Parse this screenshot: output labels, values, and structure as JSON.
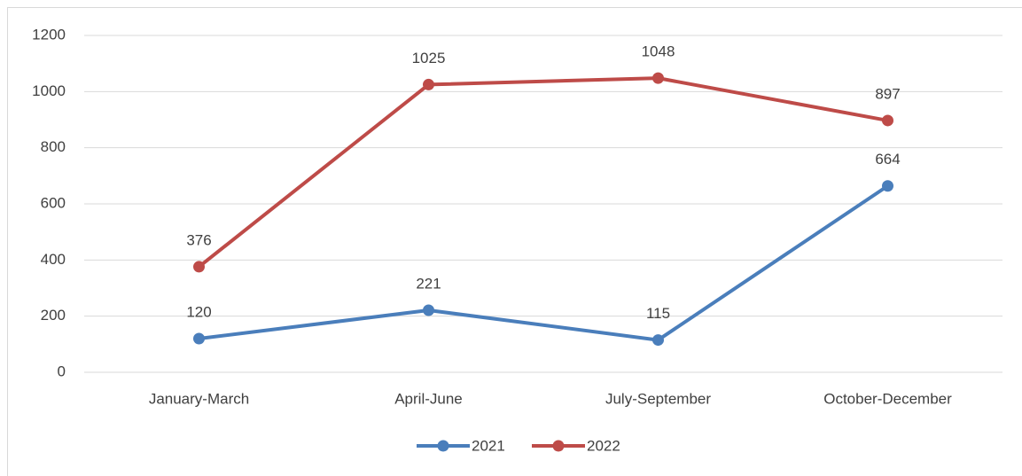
{
  "chart_data": {
    "type": "line",
    "categories": [
      "January-March",
      "April-June",
      "July-September",
      "October-December"
    ],
    "series": [
      {
        "name": "2021",
        "color": "#4a7ebb",
        "values": [
          120,
          221,
          115,
          664
        ]
      },
      {
        "name": "2022",
        "color": "#be4b48",
        "values": [
          376,
          1025,
          1048,
          897
        ]
      }
    ],
    "ylim": [
      0,
      1200
    ],
    "yticks": [
      0,
      200,
      400,
      600,
      800,
      1000,
      1200
    ],
    "grid": true,
    "legend": "bottom"
  }
}
